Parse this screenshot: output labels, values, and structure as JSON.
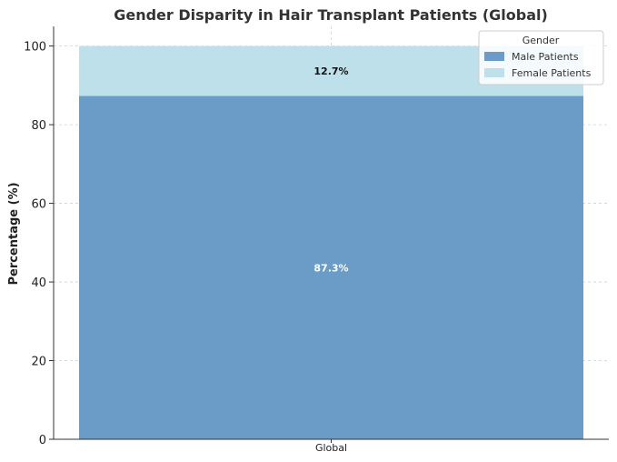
{
  "chart_data": {
    "type": "bar",
    "stacked": true,
    "title": "Gender Disparity in Hair Transplant Patients (Global)",
    "xlabel": "",
    "ylabel": "Percentage (%)",
    "categories": [
      "Global"
    ],
    "ylim": [
      0,
      105
    ],
    "yticks": [
      0,
      20,
      40,
      60,
      80,
      100
    ],
    "grid": true,
    "series": [
      {
        "name": "Male Patients",
        "values": [
          87.3
        ],
        "color": "#6a9cc7",
        "label": "87.3%"
      },
      {
        "name": "Female Patients",
        "values": [
          12.7
        ],
        "color": "#bde0ea",
        "label": "12.7%"
      }
    ],
    "legend": {
      "title": "Gender",
      "placement": "top-right"
    }
  }
}
